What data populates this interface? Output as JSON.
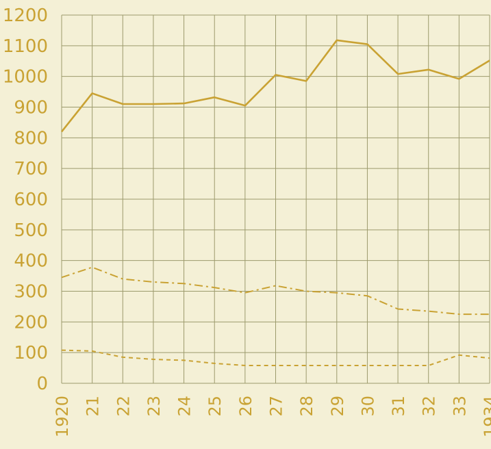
{
  "chart_data": {
    "type": "line",
    "title": "",
    "xlabel": "",
    "ylabel": "",
    "x": [
      "1920",
      "21",
      "22",
      "23",
      "24",
      "25",
      "26",
      "27",
      "28",
      "29",
      "30",
      "31",
      "32",
      "33",
      "1934"
    ],
    "y_ticks": [
      "0",
      "100",
      "200",
      "300",
      "400",
      "500",
      "600",
      "700",
      "800",
      "900",
      "1000",
      "1100",
      "1200"
    ],
    "ylim": [
      0,
      1200
    ],
    "grid": true,
    "legend": "none",
    "colors": {
      "background": "#f4f0d6",
      "grid": "#9c9a6c",
      "ink": "#c9a233"
    },
    "series": [
      {
        "style": "solid",
        "values": [
          820,
          945,
          910,
          910,
          912,
          932,
          905,
          1005,
          985,
          1118,
          1105,
          1008,
          1022,
          992,
          1052
        ]
      },
      {
        "style": "dash-dot",
        "values": [
          345,
          378,
          340,
          330,
          325,
          312,
          295,
          318,
          300,
          295,
          285,
          242,
          235,
          225,
          225
        ]
      },
      {
        "style": "dashed",
        "values": [
          108,
          105,
          85,
          78,
          75,
          65,
          58,
          58,
          58,
          58,
          58,
          58,
          58,
          92,
          82
        ]
      }
    ]
  }
}
